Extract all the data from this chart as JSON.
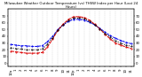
{
  "title": "Milwaukee Weather Outdoor Temperature (vs) THSW Index per Hour (Last 24 Hours)",
  "title_fontsize": 2.8,
  "background_color": "#ffffff",
  "grid_color": "#bbbbbb",
  "hours": [
    0,
    1,
    2,
    3,
    4,
    5,
    6,
    7,
    8,
    9,
    10,
    11,
    12,
    13,
    14,
    15,
    16,
    17,
    18,
    19,
    20,
    21,
    22,
    23
  ],
  "temp": [
    28,
    27,
    26,
    26,
    25,
    25,
    26,
    32,
    40,
    50,
    57,
    62,
    65,
    65,
    64,
    61,
    57,
    52,
    46,
    41,
    37,
    34,
    31,
    29
  ],
  "thsw": [
    18,
    17,
    16,
    15,
    15,
    15,
    16,
    24,
    36,
    49,
    58,
    65,
    69,
    69,
    68,
    64,
    58,
    51,
    43,
    36,
    30,
    27,
    24,
    22
  ],
  "feels": [
    23,
    22,
    21,
    20,
    20,
    20,
    21,
    28,
    38,
    49,
    57,
    63,
    67,
    67,
    66,
    62,
    57,
    51,
    44,
    39,
    33,
    30,
    27,
    25
  ],
  "temp_color": "#0000ee",
  "thsw_color": "#dd0000",
  "feels_color": "#000000",
  "ylim": [
    -5,
    80
  ],
  "yticks_left": [
    0,
    10,
    20,
    30,
    40,
    50,
    60,
    70
  ],
  "yticks_right": [
    0,
    10,
    20,
    30,
    40,
    50,
    60,
    70
  ],
  "tick_fontsize": 2.8,
  "line_width": 0.7,
  "figsize": [
    1.6,
    0.87
  ],
  "dpi": 100,
  "hour_labels": [
    "12a",
    "1",
    "2",
    "3",
    "4",
    "5",
    "6",
    "7",
    "8",
    "9",
    "10",
    "11",
    "12p",
    "1",
    "2",
    "3",
    "4",
    "5",
    "6",
    "7",
    "8",
    "9",
    "10",
    "11"
  ]
}
